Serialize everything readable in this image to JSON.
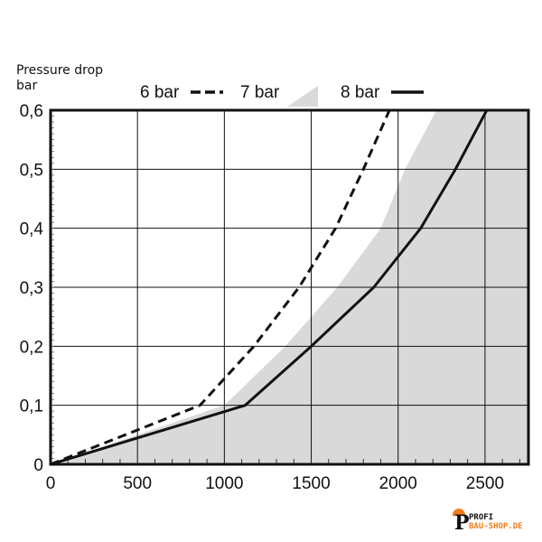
{
  "chart_data": {
    "type": "line",
    "title": "",
    "xlabel": "",
    "ylabel": "Pressure drop bar",
    "xlim": [
      0,
      2750
    ],
    "ylim": [
      0,
      0.6
    ],
    "grid": true,
    "legend_position": "top",
    "x_ticks": [
      0,
      500,
      1000,
      1500,
      2000,
      2500
    ],
    "x_tick_labels": [
      "0",
      "500",
      "1000",
      "1500",
      "2000",
      "2500"
    ],
    "y_ticks": [
      0,
      0.1,
      0.2,
      0.3,
      0.4,
      0.5,
      0.6
    ],
    "y_tick_labels": [
      "0",
      "0,1",
      "0,2",
      "0,3",
      "0,4",
      "0,5",
      "0,6"
    ],
    "series": [
      {
        "name": "6 bar",
        "style": "dashed",
        "color": "#111111",
        "x": [
          0,
          860,
          1170,
          1430,
          1640,
          1800,
          1950
        ],
        "y": [
          0,
          0.1,
          0.2,
          0.3,
          0.4,
          0.5,
          0.6
        ]
      },
      {
        "name": "7 bar",
        "style": "area",
        "color": "#d9d9d9",
        "x": [
          0,
          1000,
          1350,
          1650,
          1900,
          2040,
          2220
        ],
        "y": [
          0,
          0.1,
          0.2,
          0.3,
          0.4,
          0.5,
          0.6
        ]
      },
      {
        "name": "8 bar",
        "style": "solid",
        "color": "#111111",
        "x": [
          0,
          1120,
          1500,
          1860,
          2130,
          2330,
          2510
        ],
        "y": [
          0,
          0.1,
          0.2,
          0.3,
          0.4,
          0.5,
          0.6
        ]
      }
    ]
  },
  "logo": {
    "line1": "PROFI",
    "line2": "BAU-SHOP.DE"
  }
}
